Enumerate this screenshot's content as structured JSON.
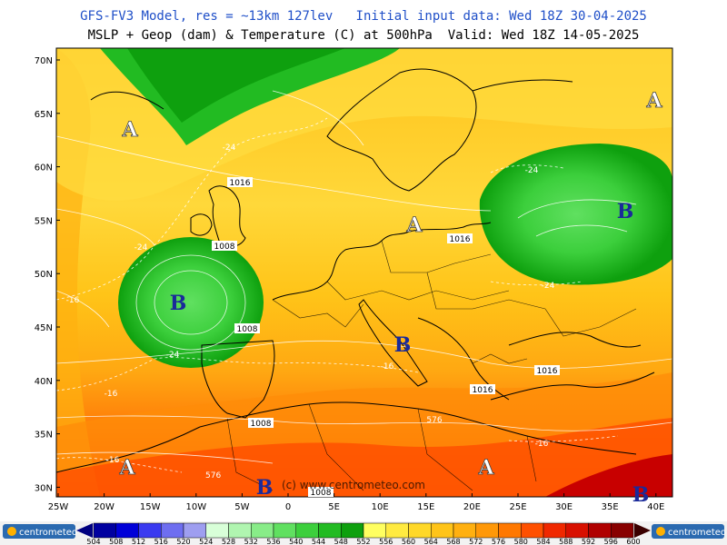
{
  "header": {
    "line1": "GFS-FV3 Model, res = ~13km 127lev   Initial input data: Wed 18Z 30-04-2025",
    "line2": "MSLP + Geop (dam) & Temperature (C) at 500hPa  Valid: Wed 18Z 14-05-2025"
  },
  "axes": {
    "lat_labels": [
      "70N",
      "65N",
      "60N",
      "55N",
      "50N",
      "45N",
      "40N",
      "35N",
      "30N"
    ],
    "lon_labels": [
      "25W",
      "20W",
      "15W",
      "10W",
      "5W",
      "0",
      "5E",
      "10E",
      "15E",
      "20E",
      "25E",
      "30E",
      "35E",
      "40E"
    ]
  },
  "pressure_centers": [
    {
      "symbol": "A",
      "name": "high-greenland"
    },
    {
      "symbol": "A",
      "name": "high-central-europe"
    },
    {
      "symbol": "A",
      "name": "high-northeast"
    },
    {
      "symbol": "A",
      "name": "high-atlantic-south"
    },
    {
      "symbol": "A",
      "name": "high-africa"
    },
    {
      "symbol": "B",
      "name": "low-biscay"
    },
    {
      "symbol": "B",
      "name": "low-russia"
    },
    {
      "symbol": "B",
      "name": "low-italy"
    },
    {
      "symbol": "B",
      "name": "low-morocco"
    },
    {
      "symbol": "B",
      "name": "low-middle-east"
    }
  ],
  "isobar_labels": [
    "1016",
    "1008",
    "1008",
    "1016",
    "1016",
    "1016",
    "1008",
    "1008",
    "576"
  ],
  "temp_labels": [
    "-24",
    "-24",
    "-24",
    "-24",
    "-24",
    "-16",
    "-16",
    "-16",
    "-16",
    "-16"
  ],
  "watermark": "(c) www.centrometeo.com",
  "logo": "centrometeo",
  "legend": {
    "values": [
      "504",
      "508",
      "512",
      "516",
      "520",
      "524",
      "528",
      "532",
      "536",
      "540",
      "544",
      "548",
      "552",
      "556",
      "560",
      "564",
      "568",
      "572",
      "576",
      "580",
      "584",
      "588",
      "592",
      "596",
      "600"
    ],
    "colors": [
      "#0000a0",
      "#0000d8",
      "#3a3af0",
      "#6e6ef0",
      "#9e9ef0",
      "#d8ffd8",
      "#b0f5b0",
      "#88ec88",
      "#60e060",
      "#3ccf3c",
      "#22bb22",
      "#0ea00e",
      "#ffff60",
      "#ffea40",
      "#ffd828",
      "#ffc418",
      "#ffb010",
      "#ff9808",
      "#ff7800",
      "#ff5000",
      "#f02800",
      "#d81000",
      "#b00000",
      "#880000",
      "#600000"
    ]
  }
}
